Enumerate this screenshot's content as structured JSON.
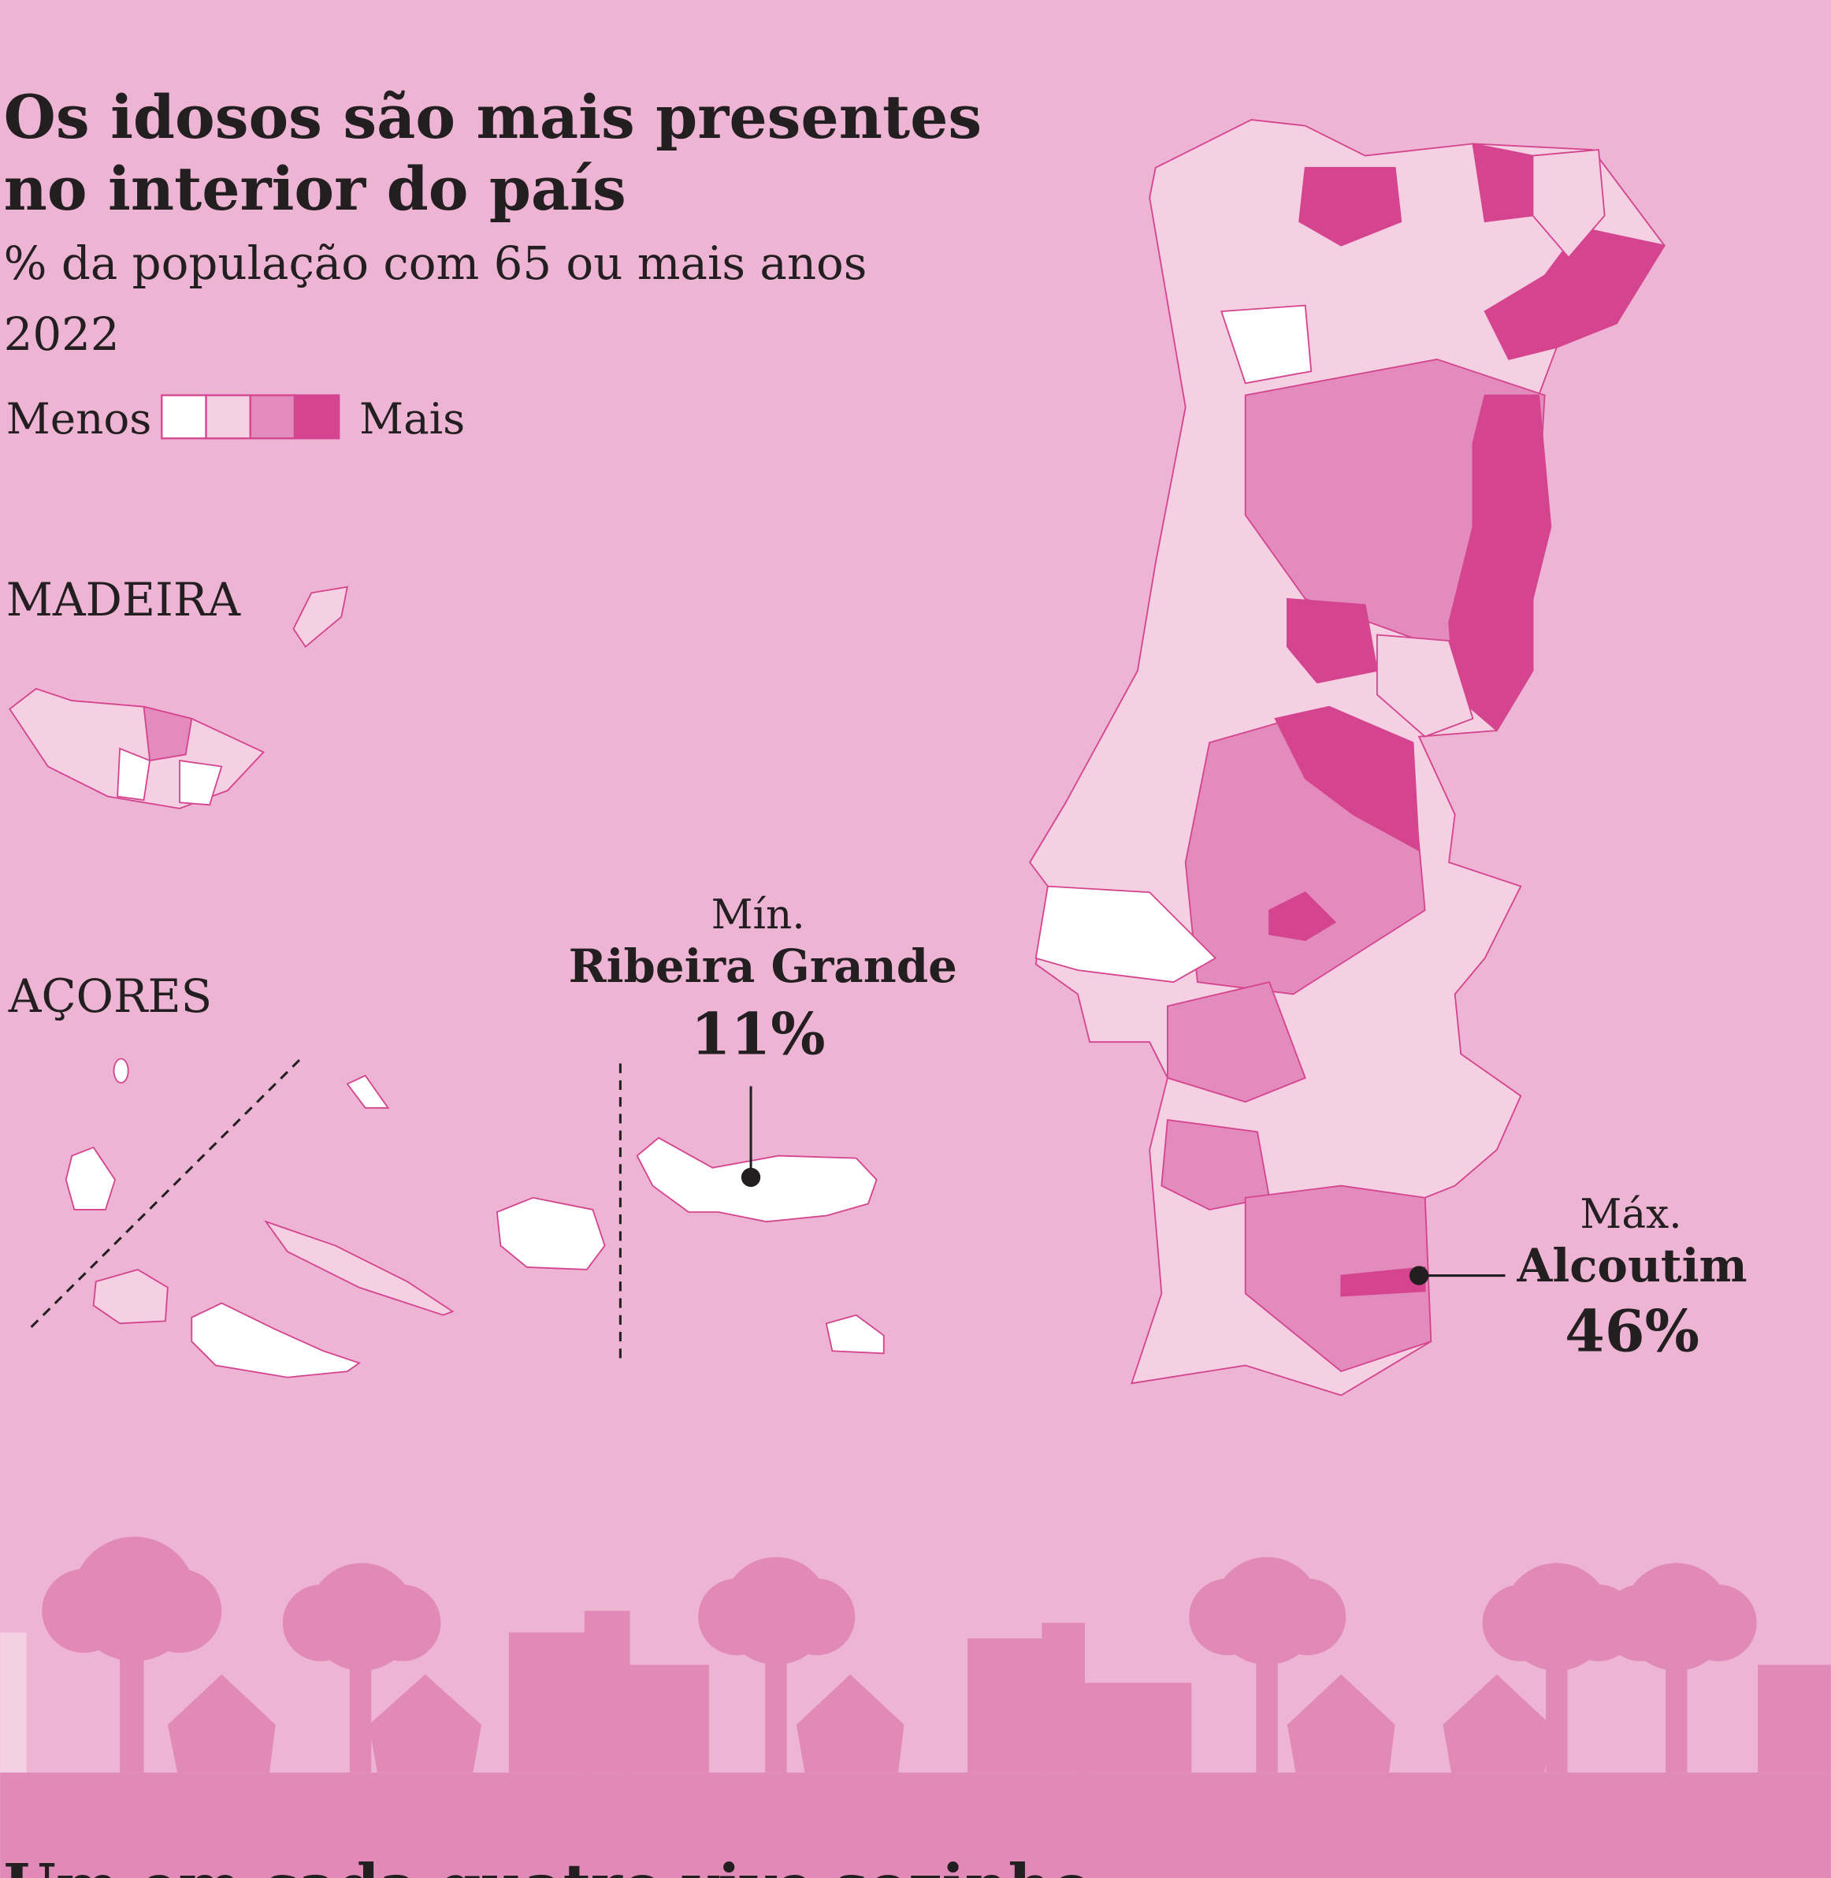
{
  "header": {
    "title": [
      "Os idosos são mais presentes",
      "no interior do país"
    ],
    "subtitle": "% da população com 65 ou mais anos",
    "year": "2022"
  },
  "legend": {
    "low": "Menos",
    "high": "Mais",
    "colors": [
      "#ffffff",
      "#f5d0e3",
      "#e48bbd",
      "#d4448f"
    ]
  },
  "regions": {
    "madeira": "MADEIRA",
    "acores": "AÇORES"
  },
  "annotations": {
    "min": {
      "label": "Mín.",
      "place": "Ribeira Grande",
      "value": "11%"
    },
    "max": {
      "label": "Máx.",
      "place": "Alcoutim",
      "value": "46%"
    }
  },
  "next_section": {
    "title": "Um em cada quatro vive sozinho"
  }
}
